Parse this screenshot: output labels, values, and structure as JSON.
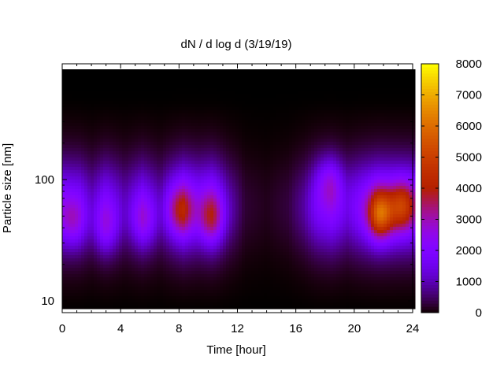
{
  "chart_data": {
    "type": "heatmap",
    "title": "dN / d log d (3/19/19)",
    "xlabel": "Time [hour]",
    "ylabel": "Particle size [nm]",
    "x_ticks": [
      0,
      4,
      8,
      12,
      16,
      20,
      24
    ],
    "xlim": [
      0,
      24
    ],
    "y_scale": "log",
    "ylim": [
      8,
      900
    ],
    "y_ticks": [
      10,
      100
    ],
    "colorbar": {
      "ticks": [
        0,
        1000,
        2000,
        3000,
        4000,
        5000,
        6000,
        7000,
        8000
      ],
      "range": [
        0,
        8000
      ],
      "palette": "black-purple-red-orange-yellow"
    },
    "grid": false,
    "time_envelope": [
      {
        "t": 0.0,
        "v": 0.78
      },
      {
        "t": 1.2,
        "v": 0.7
      },
      {
        "t": 2.0,
        "v": 0.42
      },
      {
        "t": 3.0,
        "v": 0.72
      },
      {
        "t": 4.3,
        "v": 0.38
      },
      {
        "t": 5.5,
        "v": 0.7
      },
      {
        "t": 6.7,
        "v": 0.38
      },
      {
        "t": 7.5,
        "v": 0.7
      },
      {
        "t": 8.3,
        "v": 1.0
      },
      {
        "t": 9.3,
        "v": 0.8
      },
      {
        "t": 10.3,
        "v": 0.92
      },
      {
        "t": 11.4,
        "v": 0.4
      },
      {
        "t": 12.5,
        "v": 0.1
      },
      {
        "t": 14.0,
        "v": 0.05
      },
      {
        "t": 15.5,
        "v": 0.12
      },
      {
        "t": 16.5,
        "v": 0.32
      },
      {
        "t": 17.5,
        "v": 0.68
      },
      {
        "t": 18.5,
        "v": 0.82
      },
      {
        "t": 19.5,
        "v": 0.55
      },
      {
        "t": 20.5,
        "v": 0.8
      },
      {
        "t": 21.6,
        "v": 1.0
      },
      {
        "t": 23.0,
        "v": 0.94
      },
      {
        "t": 24.0,
        "v": 0.9
      }
    ],
    "hotspots": [
      {
        "t": 0.7,
        "d": 45,
        "value": 3800
      },
      {
        "t": 3.0,
        "d": 40,
        "value": 3700
      },
      {
        "t": 5.6,
        "d": 45,
        "value": 3700
      },
      {
        "t": 8.1,
        "d": 55,
        "value": 4400
      },
      {
        "t": 10.2,
        "d": 48,
        "value": 4300
      },
      {
        "t": 18.3,
        "d": 95,
        "value": 3800
      },
      {
        "t": 21.8,
        "d": 52,
        "value": 6200
      },
      {
        "t": 23.3,
        "d": 60,
        "value": 5200
      }
    ]
  }
}
